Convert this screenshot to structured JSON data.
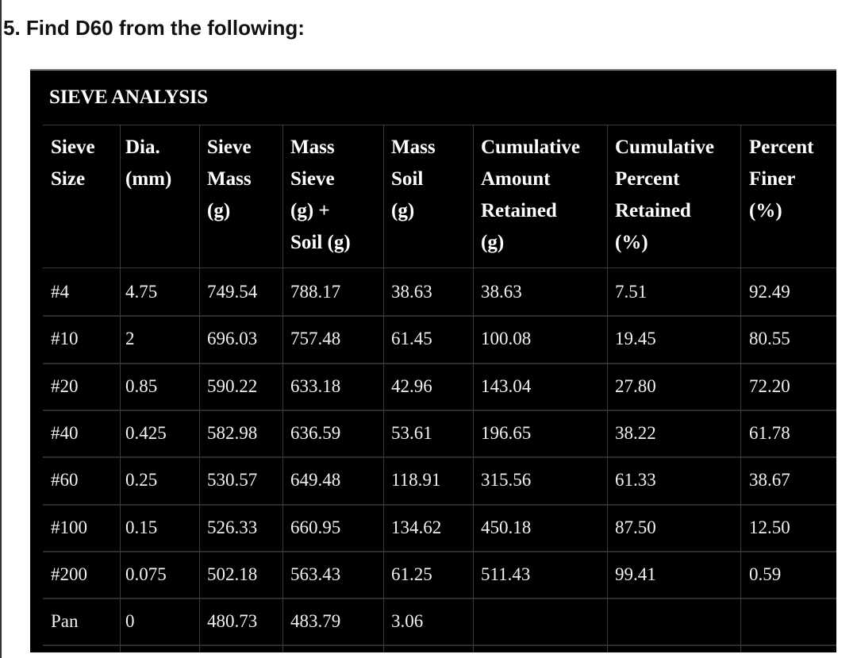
{
  "question": "5. Find D60 from the following:",
  "table": {
    "title": "SIEVE ANALYSIS",
    "headers": [
      [
        "Sieve",
        "Size"
      ],
      [
        "Dia.",
        "(mm)"
      ],
      [
        "Sieve",
        "Mass",
        "(g)"
      ],
      [
        "Mass",
        "Sieve",
        "(g) +",
        "Soil (g)"
      ],
      [
        "Mass",
        "Soil",
        "(g)"
      ],
      [
        "Cumulative",
        "Amount",
        "Retained",
        "(g)"
      ],
      [
        "Cumulative",
        "Percent",
        "Retained",
        "(%)"
      ],
      [
        "Percent",
        "Finer",
        "(%)"
      ]
    ],
    "rows": [
      [
        "#4",
        "4.75",
        "749.54",
        "788.17",
        "38.63",
        "38.63",
        "7.51",
        "92.49"
      ],
      [
        "#10",
        "2",
        "696.03",
        "757.48",
        "61.45",
        "100.08",
        "19.45",
        "80.55"
      ],
      [
        "#20",
        "0.85",
        "590.22",
        "633.18",
        "42.96",
        "143.04",
        "27.80",
        "72.20"
      ],
      [
        "#40",
        "0.425",
        "582.98",
        "636.59",
        "53.61",
        "196.65",
        "38.22",
        "61.78"
      ],
      [
        "#60",
        "0.25",
        "530.57",
        "649.48",
        "118.91",
        "315.56",
        "61.33",
        "38.67"
      ],
      [
        "#100",
        "0.15",
        "526.33",
        "660.95",
        "134.62",
        "450.18",
        "87.50",
        "12.50"
      ],
      [
        "#200",
        "0.075",
        "502.18",
        "563.43",
        "61.25",
        "511.43",
        "99.41",
        "0.59"
      ],
      [
        "Pan",
        "0",
        "480.73",
        "483.79",
        "3.06",
        "",
        "",
        ""
      ]
    ]
  }
}
